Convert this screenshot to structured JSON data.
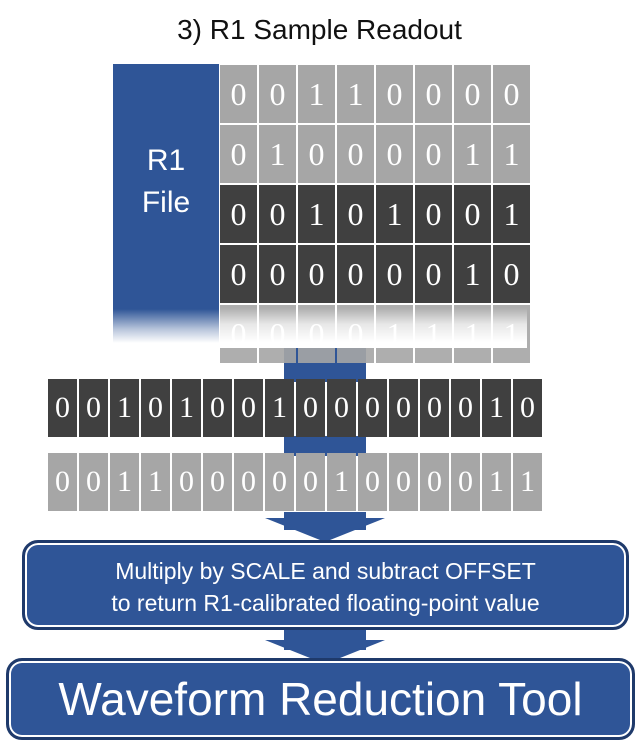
{
  "diagram": {
    "title": "3) R1 Sample Readout",
    "file_label_line1": "R1",
    "file_label_line2": "File",
    "grid_rows": [
      {
        "shade": "light",
        "bits": [
          "0",
          "0",
          "1",
          "1",
          "0",
          "0",
          "0",
          "0"
        ]
      },
      {
        "shade": "light",
        "bits": [
          "0",
          "1",
          "0",
          "0",
          "0",
          "0",
          "1",
          "1"
        ]
      },
      {
        "shade": "dark",
        "bits": [
          "0",
          "0",
          "1",
          "0",
          "1",
          "0",
          "0",
          "1"
        ]
      },
      {
        "shade": "dark",
        "bits": [
          "0",
          "0",
          "0",
          "0",
          "0",
          "0",
          "1",
          "0"
        ]
      },
      {
        "shade": "light",
        "bits": [
          "0",
          "0",
          "0",
          "0",
          "1",
          "1",
          "1",
          "1"
        ]
      }
    ],
    "strip_dark": [
      "0",
      "0",
      "1",
      "0",
      "1",
      "0",
      "0",
      "1",
      "0",
      "0",
      "0",
      "0",
      "0",
      "0",
      "1",
      "0"
    ],
    "strip_light": [
      "0",
      "0",
      "1",
      "1",
      "0",
      "0",
      "0",
      "0",
      "0",
      "1",
      "0",
      "0",
      "0",
      "0",
      "1",
      "1"
    ],
    "step_line1": "Multiply by SCALE and subtract OFFSET",
    "step_line2": "to return R1-calibrated floating-point value",
    "tool_label": "Waveform Reduction Tool",
    "colors": {
      "accent_blue": "#2f5597",
      "border_blue": "#1f3a6b",
      "dark_cell": "#404040",
      "light_cell": "#a6a6a6"
    }
  }
}
